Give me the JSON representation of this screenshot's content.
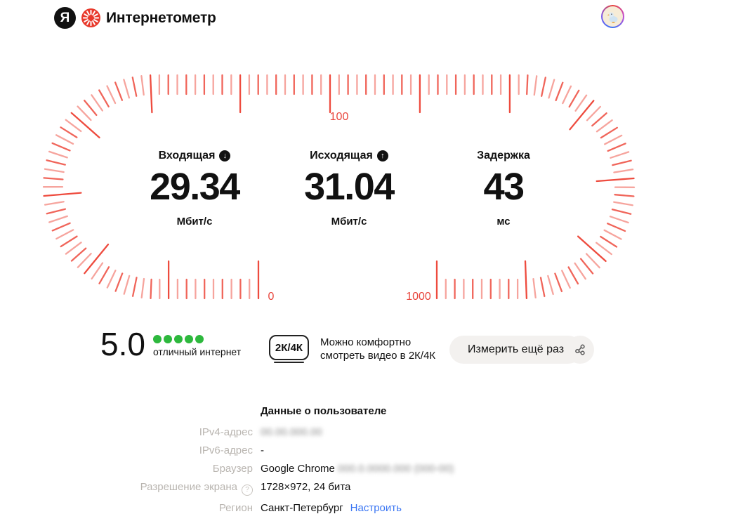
{
  "header": {
    "brand_letter": "Я",
    "title": "Интернетометр"
  },
  "colors": {
    "tick_red": "#ee4b3e",
    "scale_red": "#e8453c",
    "dot_green": "#2db83d",
    "link_blue": "#3b76f3"
  },
  "gauge": {
    "scale_top": "100",
    "scale_min": "0",
    "scale_max": "1000"
  },
  "metrics": [
    {
      "label": "Входящая",
      "icon": "down-arrow",
      "icon_glyph": "↓",
      "value": "29.34",
      "unit": "Мбит/с"
    },
    {
      "label": "Исходящая",
      "icon": "up-arrow",
      "icon_glyph": "↑",
      "value": "31.04",
      "unit": "Мбит/с"
    },
    {
      "label": "Задержка",
      "icon": null,
      "icon_glyph": "",
      "value": "43",
      "unit": "мс"
    }
  ],
  "rating": {
    "score": "5.0",
    "dots": 5,
    "caption": "отличный интернет"
  },
  "quality": {
    "badge": "2К/4К",
    "lines": [
      "Можно комфортно",
      "смотреть видео в 2К/4К"
    ]
  },
  "actions": {
    "measure_again": "Измерить ещё раз",
    "share": "share-icon"
  },
  "user_data": {
    "title": "Данные о пользователе",
    "rows": [
      {
        "label": "IPv4-адрес",
        "value": "",
        "blurred_value": "00.00.000.00"
      },
      {
        "label": "IPv6-адрес",
        "value": "-"
      },
      {
        "label": "Браузер",
        "value": "Google Chrome",
        "blurred_value": "000.0.0000.000 (000-00)"
      },
      {
        "label": "Разрешение экрана",
        "info": true,
        "value": "1728×972, 24 бита"
      },
      {
        "label": "Регион",
        "value": "Санкт-Петербург",
        "link": "Настроить"
      }
    ]
  }
}
